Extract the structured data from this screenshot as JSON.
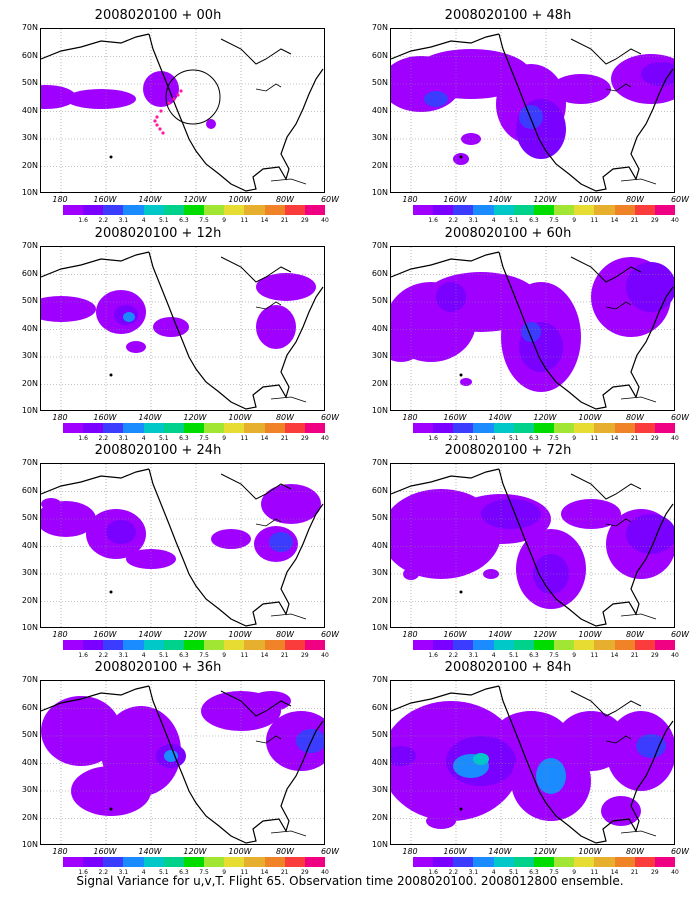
{
  "panels": [
    {
      "title": "2008020100 + 00h"
    },
    {
      "title": "2008020100 + 48h"
    },
    {
      "title": "2008020100 + 12h"
    },
    {
      "title": "2008020100 + 60h"
    },
    {
      "title": "2008020100 + 24h"
    },
    {
      "title": "2008020100 + 72h"
    },
    {
      "title": "2008020100 + 36h"
    },
    {
      "title": "2008020100 + 84h"
    }
  ],
  "lat_labels": [
    "70N",
    "60N",
    "50N",
    "40N",
    "30N",
    "20N",
    "10N"
  ],
  "lon_labels": [
    "180",
    "160W",
    "140W",
    "120W",
    "100W",
    "80W",
    "60W"
  ],
  "colorbar": {
    "labels": [
      "1.6",
      "2.2",
      "3.1",
      "4",
      "5.1",
      "6.3",
      "7.5",
      "9",
      "11",
      "14",
      "21",
      "29",
      "40"
    ],
    "colors": [
      "#9f00ff",
      "#7a00ff",
      "#3c3cff",
      "#1a8cff",
      "#00c8c8",
      "#00d28c",
      "#00dc00",
      "#a0e632",
      "#e6dc32",
      "#e6af2d",
      "#f08228",
      "#fa3c3c",
      "#f00082"
    ]
  },
  "caption": "Signal Variance for u,v,T. Flight 65. Observation time 2008020100. 2008012800 ensemble."
}
